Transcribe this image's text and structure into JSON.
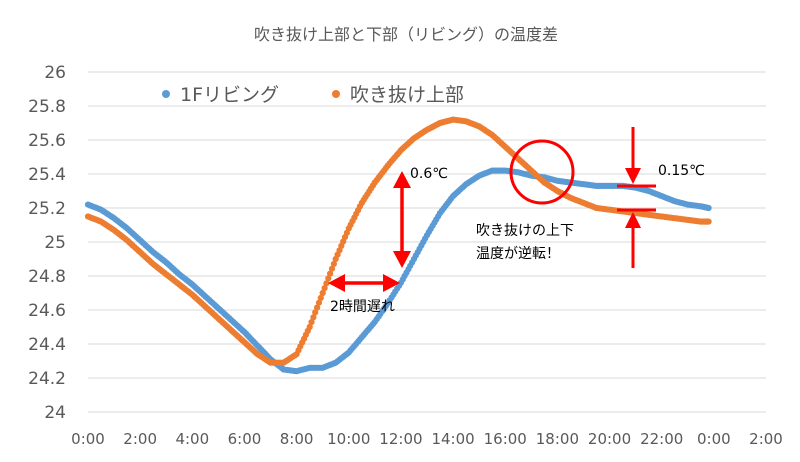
{
  "chart_data": {
    "type": "scatter",
    "title": "吹き抜け上部と下部（リビング）の温度差",
    "xlabel": "",
    "ylabel": "",
    "ylim": [
      24,
      26
    ],
    "xlim": [
      0,
      24
    ],
    "grid": "horizontal",
    "legend_position": "top-left",
    "y_ticks": [
      "24",
      "24.2",
      "24.4",
      "24.6",
      "24.8",
      "25",
      "25.2",
      "25.4",
      "25.6",
      "25.8",
      "26"
    ],
    "x_ticks": [
      "0:00",
      "2:00",
      "4:00",
      "6:00",
      "8:00",
      "10:00",
      "12:00",
      "14:00",
      "16:00",
      "18:00",
      "20:00",
      "22:00",
      "0:00",
      "2:00"
    ],
    "series": [
      {
        "name": "1Fリビング",
        "color": "#5B9BD5",
        "points": [
          [
            0,
            25.22
          ],
          [
            0.5,
            25.19
          ],
          [
            1,
            25.14
          ],
          [
            1.5,
            25.08
          ],
          [
            2,
            25.01
          ],
          [
            2.5,
            24.94
          ],
          [
            3,
            24.88
          ],
          [
            3.5,
            24.81
          ],
          [
            4,
            24.75
          ],
          [
            4.5,
            24.68
          ],
          [
            5,
            24.61
          ],
          [
            5.5,
            24.54
          ],
          [
            6,
            24.47
          ],
          [
            6.5,
            24.39
          ],
          [
            7,
            24.31
          ],
          [
            7.5,
            24.25
          ],
          [
            8,
            24.24
          ],
          [
            8.5,
            24.26
          ],
          [
            9,
            24.26
          ],
          [
            9.5,
            24.29
          ],
          [
            10,
            24.35
          ],
          [
            10.5,
            24.44
          ],
          [
            11,
            24.53
          ],
          [
            11.5,
            24.64
          ],
          [
            12,
            24.76
          ],
          [
            12.5,
            24.9
          ],
          [
            13,
            25.04
          ],
          [
            13.5,
            25.17
          ],
          [
            14,
            25.27
          ],
          [
            14.5,
            25.34
          ],
          [
            15,
            25.39
          ],
          [
            15.5,
            25.42
          ],
          [
            16,
            25.42
          ],
          [
            16.5,
            25.41
          ],
          [
            17,
            25.39
          ],
          [
            17.5,
            25.38
          ],
          [
            18,
            25.36
          ],
          [
            18.5,
            25.35
          ],
          [
            19,
            25.34
          ],
          [
            19.5,
            25.33
          ],
          [
            20,
            25.33
          ],
          [
            20.5,
            25.33
          ],
          [
            21,
            25.32
          ],
          [
            21.5,
            25.3
          ],
          [
            22,
            25.27
          ],
          [
            22.5,
            25.24
          ],
          [
            23,
            25.22
          ],
          [
            23.5,
            25.21
          ],
          [
            23.8,
            25.2
          ]
        ]
      },
      {
        "name": "吹き抜け上部",
        "color": "#ED7D31",
        "points": [
          [
            0,
            25.15
          ],
          [
            0.5,
            25.12
          ],
          [
            1,
            25.07
          ],
          [
            1.5,
            25.01
          ],
          [
            2,
            24.94
          ],
          [
            2.5,
            24.87
          ],
          [
            3,
            24.81
          ],
          [
            3.5,
            24.75
          ],
          [
            4,
            24.69
          ],
          [
            4.5,
            24.62
          ],
          [
            5,
            24.55
          ],
          [
            5.5,
            24.48
          ],
          [
            6,
            24.41
          ],
          [
            6.5,
            24.34
          ],
          [
            7,
            24.29
          ],
          [
            7.5,
            24.29
          ],
          [
            8,
            24.34
          ],
          [
            8.5,
            24.5
          ],
          [
            9,
            24.7
          ],
          [
            9.5,
            24.9
          ],
          [
            10,
            25.08
          ],
          [
            10.5,
            25.23
          ],
          [
            11,
            25.35
          ],
          [
            11.5,
            25.45
          ],
          [
            12,
            25.54
          ],
          [
            12.5,
            25.61
          ],
          [
            13,
            25.66
          ],
          [
            13.5,
            25.7
          ],
          [
            14,
            25.72
          ],
          [
            14.5,
            25.71
          ],
          [
            15,
            25.68
          ],
          [
            15.5,
            25.63
          ],
          [
            16,
            25.56
          ],
          [
            16.5,
            25.49
          ],
          [
            17,
            25.42
          ],
          [
            17.5,
            25.35
          ],
          [
            18,
            25.3
          ],
          [
            18.5,
            25.26
          ],
          [
            19,
            25.23
          ],
          [
            19.5,
            25.2
          ],
          [
            20,
            25.19
          ],
          [
            20.5,
            25.18
          ],
          [
            21,
            25.17
          ],
          [
            21.5,
            25.16
          ],
          [
            22,
            25.15
          ],
          [
            22.5,
            25.14
          ],
          [
            23,
            25.13
          ],
          [
            23.5,
            25.12
          ],
          [
            23.8,
            25.12
          ]
        ]
      }
    ],
    "annotations": {
      "diff1": "0.6℃",
      "lag": "2時間遅れ",
      "diff2": "0.15℃",
      "reverse_line1": "吹き抜けの上下",
      "reverse_line2": "温度が逆転！"
    },
    "annotation_color": "#FF0000"
  }
}
